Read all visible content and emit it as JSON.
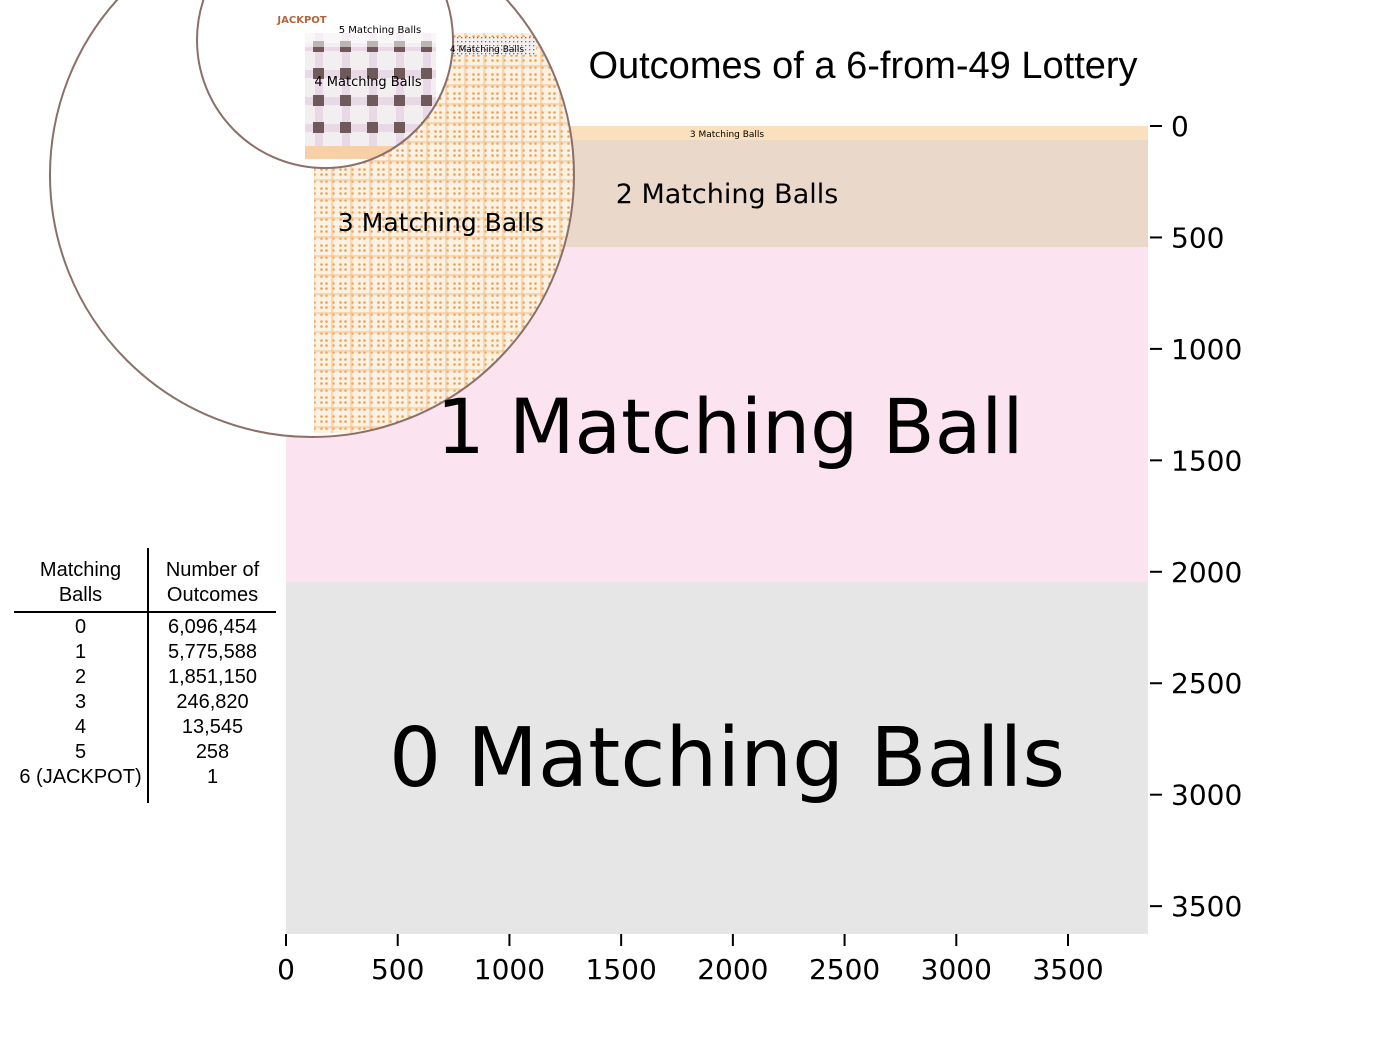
{
  "chart_data": {
    "type": "heatmap",
    "title": "Outcomes of a 6-from-49 Lottery",
    "x_ticks": [
      "0",
      "500",
      "1000",
      "1500",
      "2000",
      "2500",
      "3000",
      "3500"
    ],
    "y_ticks": [
      "0",
      "500",
      "1000",
      "1500",
      "2000",
      "2500",
      "3000",
      "3500"
    ],
    "xlim": [
      0,
      3858
    ],
    "ylim": [
      0,
      3625
    ],
    "y_axis_position": "right",
    "y_inverted": true,
    "regions": [
      {
        "label": "0 Matching Balls",
        "matching": 0,
        "count": 6096454,
        "y_start": 2045,
        "y_end": 3625,
        "color": "#e6e6e6"
      },
      {
        "label": "1 Matching Ball",
        "matching": 1,
        "count": 5775588,
        "y_start": 548,
        "y_end": 2045,
        "color": "#fbe3ef"
      },
      {
        "label": "2 Matching Balls",
        "matching": 2,
        "count": 1851150,
        "y_start": 64,
        "y_end": 548,
        "color": "#ead8ca"
      },
      {
        "label": "3 Matching Balls",
        "matching": 3,
        "count": 246820,
        "y_start": 0,
        "y_end": 64,
        "color": "#fbe0bd"
      },
      {
        "label": "4 Matching Balls",
        "matching": 4,
        "count": 13545
      },
      {
        "label": "5 Matching Balls",
        "matching": 5,
        "count": 258
      },
      {
        "label": "JACKPOT",
        "matching": 6,
        "count": 1
      }
    ],
    "accent_colors": {
      "orange": "#e8a15a",
      "brown": "#6e5a5a",
      "jackpot": "#b4643c",
      "circle": "#8a6f6a"
    },
    "table": {
      "headers": [
        "Matching\nBalls",
        "Number of\nOutcomes"
      ],
      "header_col1": [
        "Matching",
        "Balls"
      ],
      "header_col2": [
        "Number of",
        "Outcomes"
      ],
      "rows": [
        [
          "0",
          "6,096,454"
        ],
        [
          "1",
          "5,775,588"
        ],
        [
          "2",
          "1,851,150"
        ],
        [
          "3",
          "246,820"
        ],
        [
          "4",
          "13,545"
        ],
        [
          "5",
          "258"
        ],
        [
          "6 (JACKPOT)",
          "1"
        ]
      ]
    }
  }
}
